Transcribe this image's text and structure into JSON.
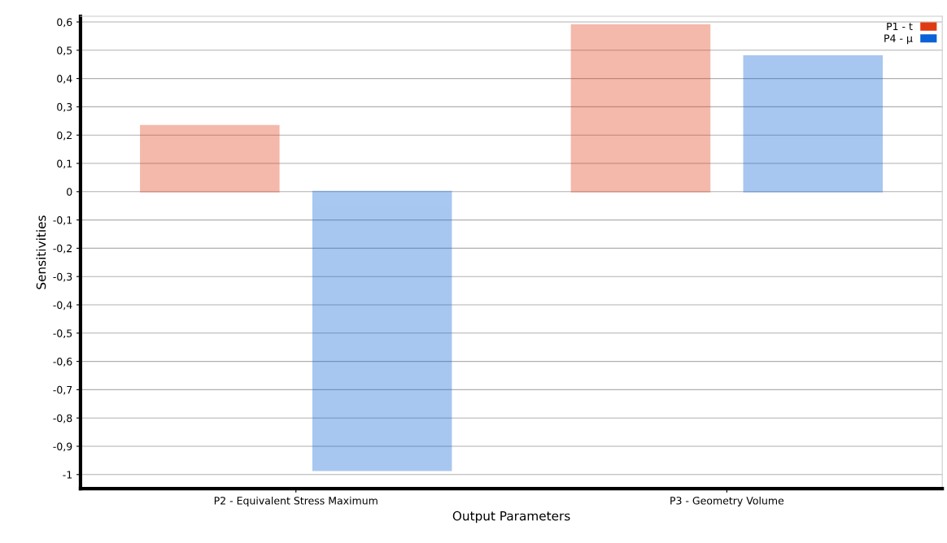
{
  "chart_data": {
    "type": "bar",
    "xlabel": "Output Parameters",
    "ylabel": "Sensitivities",
    "categories": [
      "P2 - Equivalent Stress Maximum",
      "P3 - Geometry Volume"
    ],
    "series": [
      {
        "name": "P1 - t",
        "color": "#e03a12",
        "values": [
          0.233,
          0.589
        ]
      },
      {
        "name": "P4 - μ",
        "color": "#0a62d6",
        "values": [
          -0.985,
          0.479
        ]
      }
    ],
    "ylim": [
      -1.05,
      0.62
    ],
    "yticks": [
      {
        "value": 0.6,
        "label": "0,6"
      },
      {
        "value": 0.5,
        "label": "0,5"
      },
      {
        "value": 0.4,
        "label": "0,4"
      },
      {
        "value": 0.3,
        "label": "0,3"
      },
      {
        "value": 0.2,
        "label": "0,2"
      },
      {
        "value": 0.1,
        "label": "0,1"
      },
      0,
      {
        "value": -0.1,
        "label": "-0,1"
      },
      {
        "value": -0.2,
        "label": "-0,2"
      },
      {
        "value": -0.3,
        "label": "-0,3"
      },
      {
        "value": -0.4,
        "label": "-0,4"
      },
      {
        "value": -0.5,
        "label": "-0,5"
      },
      {
        "value": -0.6,
        "label": "-0,6"
      },
      {
        "value": -0.7,
        "label": "-0,7"
      },
      {
        "value": -0.8,
        "label": "-0,8"
      },
      {
        "value": -0.9,
        "label": "-0,9"
      },
      -1
    ],
    "grid": "y",
    "legend": "top right"
  }
}
